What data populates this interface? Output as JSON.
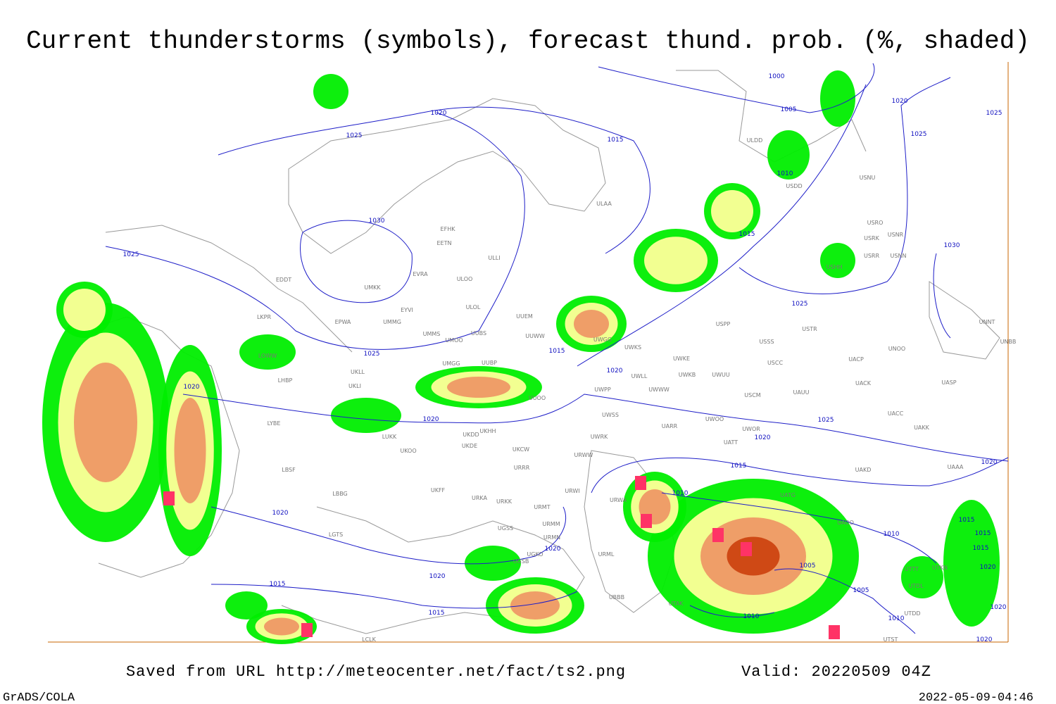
{
  "header": {
    "title": "Current thunderstorms (symbols), forecast thund. prob. (%, shaded)"
  },
  "map": {
    "isobar_labels": [
      "1020",
      "1025",
      "1000",
      "1005",
      "1015",
      "1020",
      "1025",
      "1025",
      "1010",
      "1015",
      "1030",
      "1025",
      "1030",
      "1025",
      "1025",
      "1015",
      "1020",
      "1020",
      "1020",
      "1025",
      "1020",
      "1015",
      "1020",
      "1010",
      "1020",
      "1015",
      "1015",
      "1010",
      "1020",
      "1015",
      "1005",
      "1020",
      "1020",
      "1015",
      "1005",
      "1020",
      "1015",
      "1010",
      "1010",
      "1020"
    ],
    "station_labels": [
      "ULDD",
      "USDD",
      "USNU",
      "USRO",
      "USRK",
      "USNR",
      "USRR",
      "USNN",
      "USHH",
      "UNNT",
      "UNBB",
      "ULAA",
      "EFHK",
      "EETN",
      "ULLI",
      "EVRA",
      "ULOO",
      "EDDT",
      "UMKK",
      "ULOL",
      "EYVI",
      "UUEM",
      "EPWA",
      "UMMG",
      "LKPR",
      "USPP",
      "USTR",
      "UMMS",
      "UMOO",
      "UUBS",
      "UUWW",
      "UWGG",
      "USSS",
      "UWKS",
      "UNOO",
      "LOWW",
      "UWKE",
      "UWUU",
      "USCC",
      "UACP",
      "UMGG",
      "UUBP",
      "UKLL",
      "LHBP",
      "UWLL",
      "UWKB",
      "UACK",
      "UASP",
      "UKLI",
      "UWPP",
      "UWWW",
      "USCM",
      "UAUU",
      "UUOO",
      "UACC",
      "UWSS",
      "UARR",
      "UWOO",
      "UKHH",
      "UWOR",
      "UAKK",
      "UKDD",
      "UKDE",
      "LUKK",
      "UWRK",
      "UATT",
      "UKOO",
      "UKCW",
      "URWW",
      "LYBE",
      "LBSF",
      "URRR",
      "UAKD",
      "UAAA",
      "UKFF",
      "URWI",
      "LBBG",
      "URKA",
      "URKK",
      "URWA",
      "UATG",
      "URMT",
      "UAOO",
      "URMM",
      "LGTS",
      "UGSS",
      "URMN",
      "UGKO",
      "UGSB",
      "URML",
      "UBBB",
      "UTAK",
      "UTST",
      "UTTT",
      "UTKN",
      "UTDL",
      "UTDD",
      "LCLK"
    ]
  },
  "footer": {
    "source": "Saved from URL http://meteocenter.net/fact/ts2.png",
    "valid": "Valid: 20220509 04Z",
    "software": "GrADS/COLA",
    "timestamp": "2022-05-09-04:46"
  }
}
